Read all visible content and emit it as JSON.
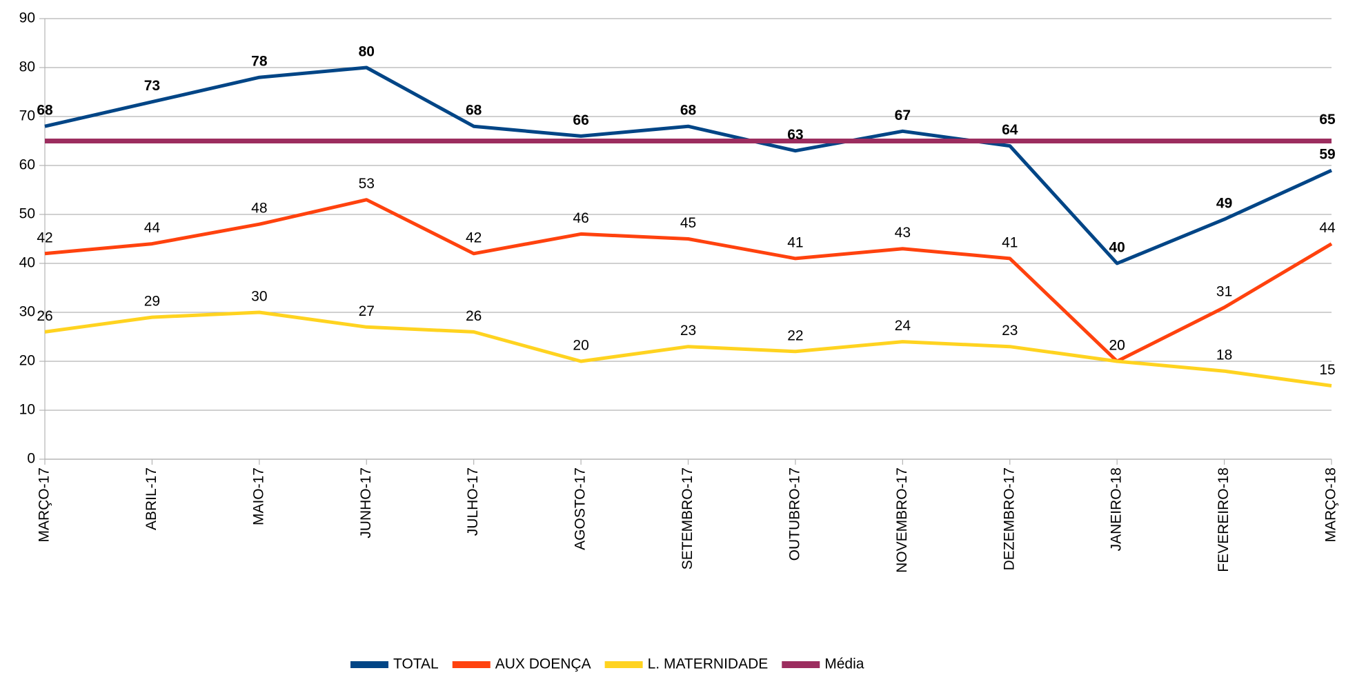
{
  "chart_data": {
    "type": "line",
    "categories": [
      "MARÇO-17",
      "ABRIL-17",
      "MAIO-17",
      "JUNHO-17",
      "JULHO-17",
      "AGOSTO-17",
      "SETEMBRO-17",
      "OUTUBRO-17",
      "NOVEMBRO-17",
      "DEZEMBRO-17",
      "JANEIRO-18",
      "FEVEREIRO-18",
      "MARÇO-18"
    ],
    "series": [
      {
        "name": "TOTAL",
        "color": "#004586",
        "values": [
          68,
          73,
          78,
          80,
          68,
          66,
          68,
          63,
          67,
          64,
          40,
          49,
          59
        ]
      },
      {
        "name": "AUX DOENÇA",
        "color": "#ff420e",
        "values": [
          42,
          44,
          48,
          53,
          42,
          46,
          45,
          41,
          43,
          41,
          20,
          31,
          44
        ]
      },
      {
        "name": "L. MATERNIDADE",
        "color": "#ffd320",
        "values": [
          26,
          29,
          30,
          27,
          26,
          20,
          23,
          22,
          24,
          23,
          20,
          18,
          15
        ]
      },
      {
        "name": "Média",
        "color": "#9c2d5f",
        "values": [
          65,
          65,
          65,
          65,
          65,
          65,
          65,
          65,
          65,
          65,
          65,
          65,
          65
        ]
      }
    ],
    "ylim": [
      0,
      90
    ],
    "yticks": [
      0,
      10,
      20,
      30,
      40,
      50,
      60,
      70,
      80,
      90
    ],
    "grid": true,
    "legend": "bottom"
  }
}
